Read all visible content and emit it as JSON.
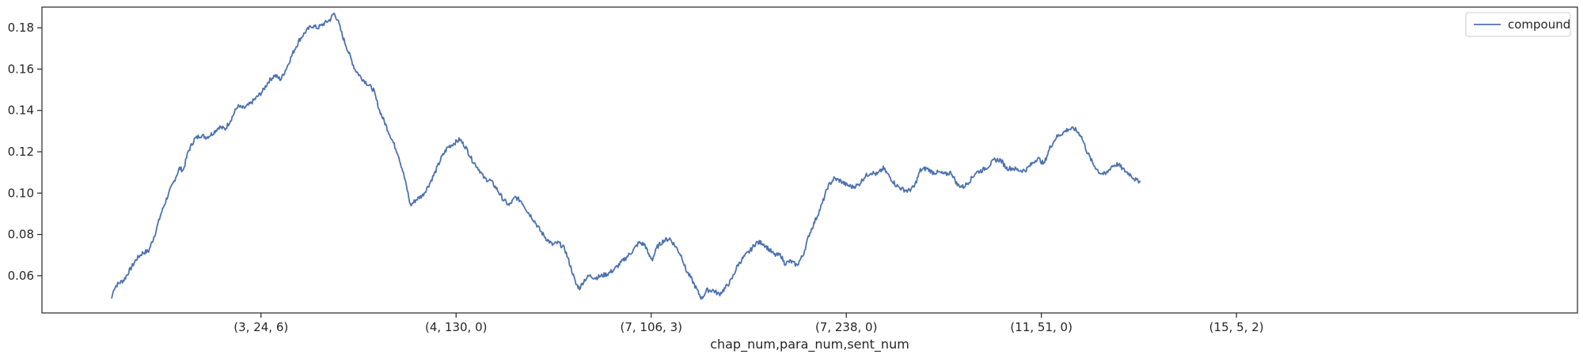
{
  "chart_data": {
    "type": "line",
    "xlabel": "chap_num,para_num,sent_num",
    "ylabel": "",
    "x_range": [
      0,
      1000
    ],
    "ylim": [
      0.042,
      0.19
    ],
    "x_ticks": [
      {
        "x": 166,
        "label": "(3, 24, 6)"
      },
      {
        "x": 324,
        "label": "(4, 130, 0)"
      },
      {
        "x": 482,
        "label": "(7, 106, 3)"
      },
      {
        "x": 640,
        "label": "(7, 238, 0)"
      },
      {
        "x": 798,
        "label": "(11, 51, 0)"
      },
      {
        "x": 956,
        "label": "(15, 5, 2)"
      }
    ],
    "y_ticks": [
      0.06,
      0.08,
      0.1,
      0.12,
      0.14,
      0.16,
      0.18
    ],
    "y_tick_labels": [
      "0.06",
      "0.08",
      "0.10",
      "0.12",
      "0.14",
      "0.16",
      "0.18"
    ],
    "legend": {
      "position": "top-right"
    },
    "grid": false,
    "series": [
      {
        "name": "compound",
        "color": "#4c72b0",
        "points": [
          [
            45,
            0.049
          ],
          [
            47,
            0.054
          ],
          [
            50,
            0.056
          ],
          [
            55,
            0.058
          ],
          [
            60,
            0.063
          ],
          [
            65,
            0.068
          ],
          [
            70,
            0.071
          ],
          [
            75,
            0.072
          ],
          [
            80,
            0.08
          ],
          [
            85,
            0.09
          ],
          [
            90,
            0.098
          ],
          [
            95,
            0.105
          ],
          [
            100,
            0.112
          ],
          [
            103,
            0.111
          ],
          [
            107,
            0.12
          ],
          [
            112,
            0.126
          ],
          [
            117,
            0.128
          ],
          [
            122,
            0.127
          ],
          [
            127,
            0.129
          ],
          [
            132,
            0.132
          ],
          [
            137,
            0.131
          ],
          [
            142,
            0.136
          ],
          [
            147,
            0.142
          ],
          [
            152,
            0.141
          ],
          [
            157,
            0.143
          ],
          [
            162,
            0.146
          ],
          [
            167,
            0.149
          ],
          [
            172,
            0.154
          ],
          [
            177,
            0.157
          ],
          [
            182,
            0.155
          ],
          [
            187,
            0.161
          ],
          [
            192,
            0.168
          ],
          [
            197,
            0.174
          ],
          [
            202,
            0.178
          ],
          [
            207,
            0.181
          ],
          [
            212,
            0.18
          ],
          [
            217,
            0.182
          ],
          [
            222,
            0.184
          ],
          [
            225,
            0.187
          ],
          [
            228,
            0.184
          ],
          [
            232,
            0.176
          ],
          [
            237,
            0.168
          ],
          [
            242,
            0.16
          ],
          [
            247,
            0.156
          ],
          [
            252,
            0.153
          ],
          [
            257,
            0.15
          ],
          [
            262,
            0.14
          ],
          [
            267,
            0.133
          ],
          [
            272,
            0.126
          ],
          [
            277,
            0.119
          ],
          [
            282,
            0.108
          ],
          [
            285,
            0.1
          ],
          [
            287,
            0.094
          ],
          [
            292,
            0.097
          ],
          [
            297,
            0.099
          ],
          [
            302,
            0.104
          ],
          [
            307,
            0.11
          ],
          [
            312,
            0.117
          ],
          [
            317,
            0.122
          ],
          [
            322,
            0.124
          ],
          [
            327,
            0.126
          ],
          [
            332,
            0.122
          ],
          [
            337,
            0.116
          ],
          [
            342,
            0.112
          ],
          [
            347,
            0.107
          ],
          [
            352,
            0.106
          ],
          [
            357,
            0.102
          ],
          [
            362,
            0.097
          ],
          [
            367,
            0.094
          ],
          [
            372,
            0.098
          ],
          [
            377,
            0.096
          ],
          [
            382,
            0.091
          ],
          [
            387,
            0.087
          ],
          [
            392,
            0.082
          ],
          [
            397,
            0.078
          ],
          [
            402,
            0.075
          ],
          [
            407,
            0.076
          ],
          [
            412,
            0.073
          ],
          [
            417,
            0.064
          ],
          [
            421,
            0.056
          ],
          [
            424,
            0.054
          ],
          [
            428,
            0.058
          ],
          [
            432,
            0.06
          ],
          [
            437,
            0.059
          ],
          [
            442,
            0.06
          ],
          [
            447,
            0.061
          ],
          [
            452,
            0.063
          ],
          [
            457,
            0.066
          ],
          [
            462,
            0.069
          ],
          [
            467,
            0.072
          ],
          [
            472,
            0.076
          ],
          [
            477,
            0.075
          ],
          [
            480,
            0.07
          ],
          [
            483,
            0.068
          ],
          [
            487,
            0.074
          ],
          [
            492,
            0.077
          ],
          [
            497,
            0.078
          ],
          [
            502,
            0.074
          ],
          [
            507,
            0.069
          ],
          [
            510,
            0.063
          ],
          [
            515,
            0.058
          ],
          [
            520,
            0.052
          ],
          [
            523,
            0.049
          ],
          [
            527,
            0.053
          ],
          [
            532,
            0.053
          ],
          [
            537,
            0.051
          ],
          [
            542,
            0.054
          ],
          [
            547,
            0.058
          ],
          [
            552,
            0.065
          ],
          [
            557,
            0.069
          ],
          [
            562,
            0.072
          ],
          [
            567,
            0.076
          ],
          [
            572,
            0.076
          ],
          [
            577,
            0.073
          ],
          [
            582,
            0.07
          ],
          [
            587,
            0.07
          ],
          [
            590,
            0.066
          ],
          [
            595,
            0.067
          ],
          [
            600,
            0.065
          ],
          [
            605,
            0.07
          ],
          [
            610,
            0.08
          ],
          [
            615,
            0.087
          ],
          [
            620,
            0.094
          ],
          [
            625,
            0.103
          ],
          [
            630,
            0.107
          ],
          [
            635,
            0.106
          ],
          [
            640,
            0.104
          ],
          [
            645,
            0.103
          ],
          [
            650,
            0.104
          ],
          [
            655,
            0.108
          ],
          [
            660,
            0.11
          ],
          [
            665,
            0.109
          ],
          [
            670,
            0.112
          ],
          [
            675,
            0.108
          ],
          [
            680,
            0.104
          ],
          [
            685,
            0.102
          ],
          [
            690,
            0.101
          ],
          [
            695,
            0.103
          ],
          [
            700,
            0.111
          ],
          [
            705,
            0.112
          ],
          [
            710,
            0.11
          ],
          [
            715,
            0.11
          ],
          [
            720,
            0.109
          ],
          [
            725,
            0.11
          ],
          [
            730,
            0.104
          ],
          [
            735,
            0.103
          ],
          [
            740,
            0.106
          ],
          [
            745,
            0.11
          ],
          [
            750,
            0.111
          ],
          [
            755,
            0.113
          ],
          [
            760,
            0.116
          ],
          [
            765,
            0.116
          ],
          [
            770,
            0.112
          ],
          [
            775,
            0.112
          ],
          [
            780,
            0.111
          ],
          [
            785,
            0.111
          ],
          [
            790,
            0.114
          ],
          [
            795,
            0.117
          ],
          [
            800,
            0.114
          ],
          [
            805,
            0.122
          ],
          [
            810,
            0.127
          ],
          [
            815,
            0.129
          ],
          [
            820,
            0.131
          ],
          [
            825,
            0.131
          ],
          [
            830,
            0.128
          ],
          [
            835,
            0.12
          ],
          [
            840,
            0.114
          ],
          [
            845,
            0.11
          ],
          [
            850,
            0.109
          ],
          [
            855,
            0.113
          ],
          [
            860,
            0.114
          ],
          [
            865,
            0.111
          ],
          [
            870,
            0.109
          ],
          [
            875,
            0.106
          ],
          [
            878,
            0.106
          ]
        ]
      }
    ]
  }
}
